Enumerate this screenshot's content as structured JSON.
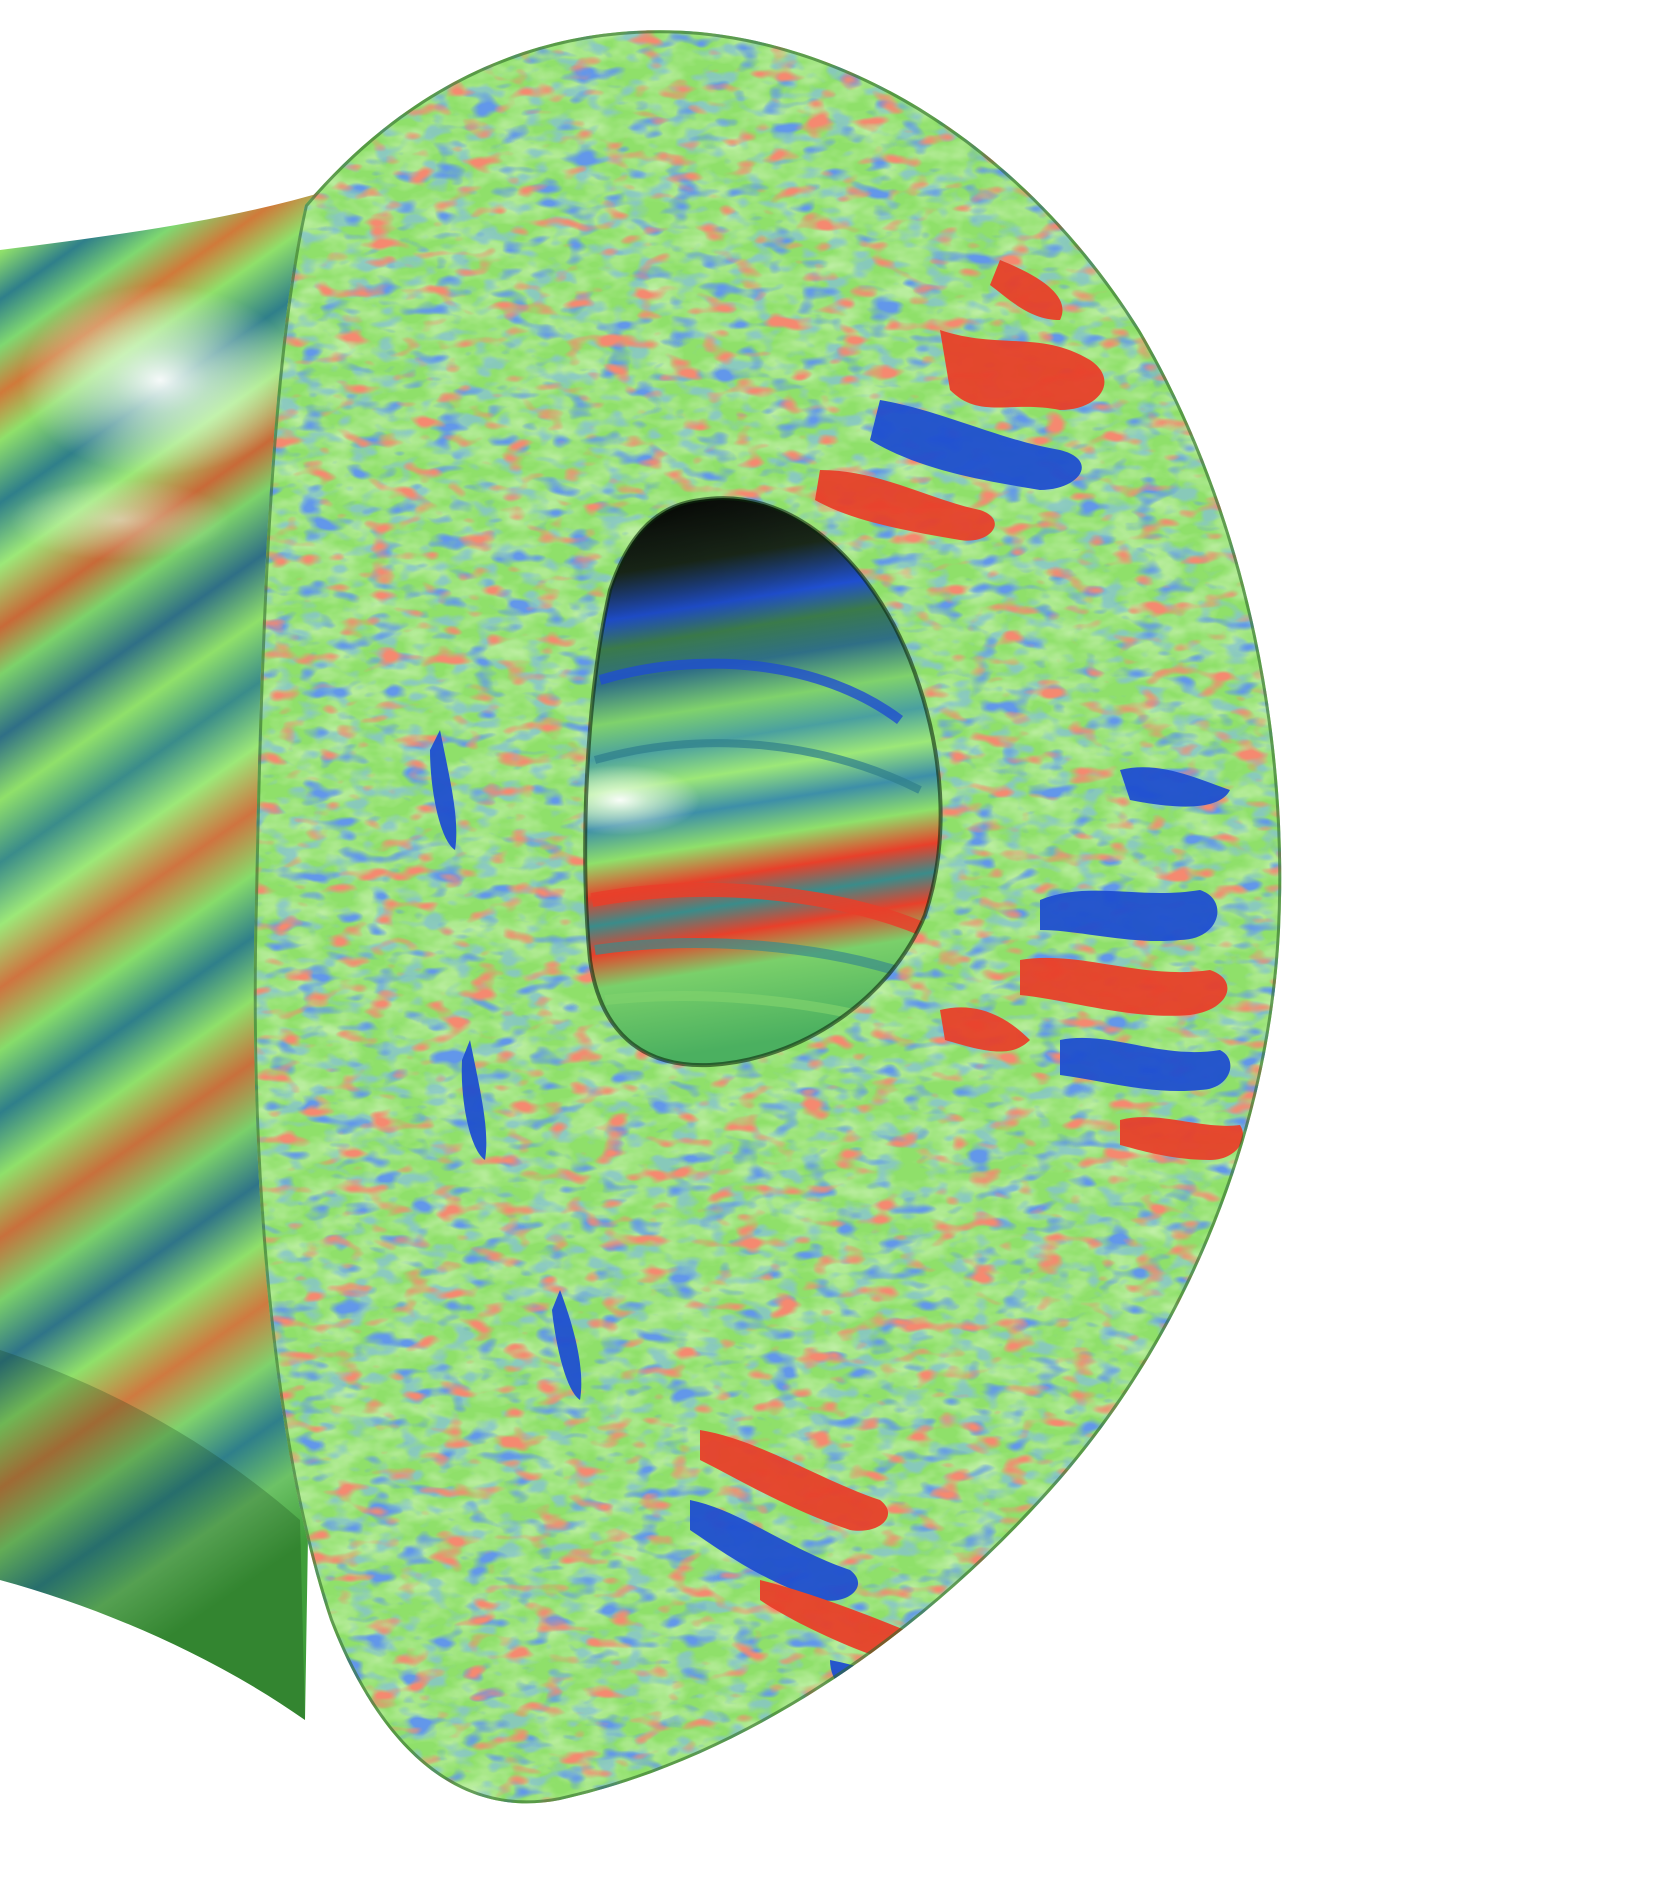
{
  "figure": {
    "subject": "tokamak-turbulence-cross-section",
    "colors": {
      "background": "#ffffff",
      "base_green": "#8fe06a",
      "deep_green": "#3f9e3a",
      "stripe_teal": "#2f7f8a",
      "stripe_blue": "#1f4fd0",
      "stripe_red": "#e8402a",
      "stripe_orange": "#d07a3a",
      "highlight": "#f4fff0",
      "hole_dark": "#0a0a0a"
    }
  }
}
